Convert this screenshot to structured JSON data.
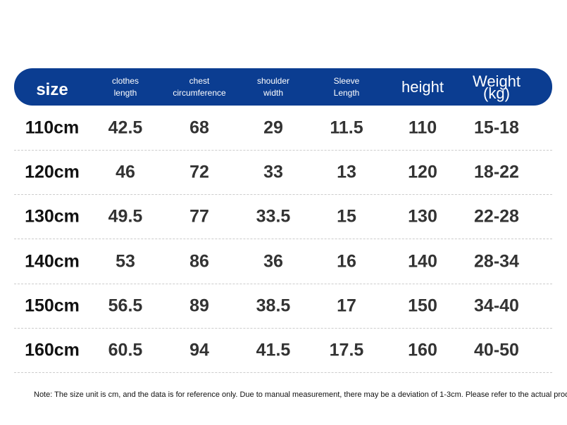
{
  "table": {
    "header": [
      "size",
      "clothes\nlength",
      "chest\ncircumference",
      "shoulder\nwidth",
      "Sleeve\nLength",
      "height",
      "Weight (kg)"
    ],
    "rows": [
      [
        "110cm",
        42.5,
        68,
        29,
        11.5,
        110,
        "15-18"
      ],
      [
        "120cm",
        46,
        72,
        33,
        13,
        120,
        "18-22"
      ],
      [
        "130cm",
        49.5,
        77,
        33.5,
        15,
        130,
        "22-28"
      ],
      [
        "140cm",
        53,
        86,
        36,
        16,
        140,
        "28-34"
      ],
      [
        "150cm",
        56.5,
        89,
        38.5,
        17,
        150,
        "34-40"
      ],
      [
        "160cm",
        60.5,
        94,
        41.5,
        17.5,
        160,
        "40-50"
      ]
    ]
  },
  "note": "Note: The size unit is cm, and the data is for reference only. Due to manual measurement, there may be a deviation of 1-3cm. Please refer to the actual product."
}
